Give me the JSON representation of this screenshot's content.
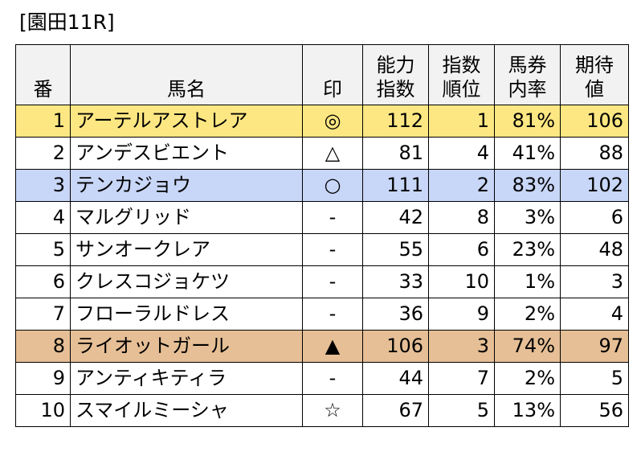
{
  "title": "[園田11R]",
  "columns": {
    "number": "番",
    "horse_name": "馬名",
    "mark": "印",
    "ability_index": "能力\n指数",
    "index_rank": "指数\n順位",
    "win_rate": "馬券\n内率",
    "expected_value": "期待\n値"
  },
  "highlight_colors": {
    "yellow": "#fde782",
    "blue": "#c8d6f7",
    "tan": "#e6bf96"
  },
  "rows": [
    {
      "number": "1",
      "horse_name": "アーテルアストレア",
      "mark": "◎",
      "ability_index": "112",
      "index_rank": "1",
      "win_rate": "81%",
      "expected_value": "106",
      "highlight": "yellow"
    },
    {
      "number": "2",
      "horse_name": "アンデスビエント",
      "mark": "△",
      "ability_index": "81",
      "index_rank": "4",
      "win_rate": "41%",
      "expected_value": "88",
      "highlight": "none"
    },
    {
      "number": "3",
      "horse_name": "テンカジョウ",
      "mark": "○",
      "ability_index": "111",
      "index_rank": "2",
      "win_rate": "83%",
      "expected_value": "102",
      "highlight": "blue"
    },
    {
      "number": "4",
      "horse_name": "マルグリッド",
      "mark": "-",
      "ability_index": "42",
      "index_rank": "8",
      "win_rate": "3%",
      "expected_value": "6",
      "highlight": "none"
    },
    {
      "number": "5",
      "horse_name": "サンオークレア",
      "mark": "-",
      "ability_index": "55",
      "index_rank": "6",
      "win_rate": "23%",
      "expected_value": "48",
      "highlight": "none"
    },
    {
      "number": "6",
      "horse_name": "クレスコジョケツ",
      "mark": "-",
      "ability_index": "33",
      "index_rank": "10",
      "win_rate": "1%",
      "expected_value": "3",
      "highlight": "none"
    },
    {
      "number": "7",
      "horse_name": "フローラルドレス",
      "mark": "-",
      "ability_index": "36",
      "index_rank": "9",
      "win_rate": "2%",
      "expected_value": "4",
      "highlight": "none"
    },
    {
      "number": "8",
      "horse_name": "ライオットガール",
      "mark": "▲",
      "ability_index": "106",
      "index_rank": "3",
      "win_rate": "74%",
      "expected_value": "97",
      "highlight": "tan"
    },
    {
      "number": "9",
      "horse_name": "アンティキティラ",
      "mark": "-",
      "ability_index": "44",
      "index_rank": "7",
      "win_rate": "2%",
      "expected_value": "5",
      "highlight": "none"
    },
    {
      "number": "10",
      "horse_name": "スマイルミーシャ",
      "mark": "☆",
      "ability_index": "67",
      "index_rank": "5",
      "win_rate": "13%",
      "expected_value": "56",
      "highlight": "none"
    }
  ]
}
